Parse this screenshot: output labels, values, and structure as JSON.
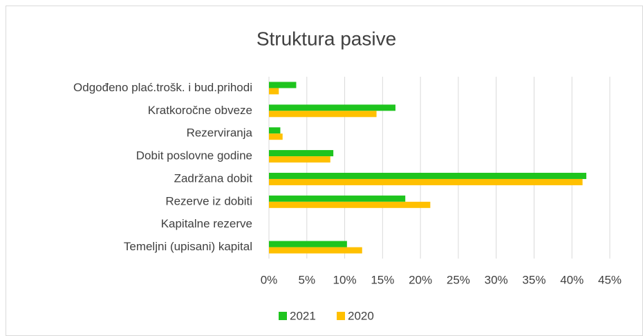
{
  "chart_data": {
    "type": "hbar",
    "title": "Struktura pasive",
    "categories": [
      "Odgođeno plać.trošk. i bud.prihodi",
      "Kratkoročne obveze",
      "Rezerviranja",
      "Dobit poslovne godine",
      "Zadržana dobit",
      "Rezerve iz dobiti",
      "Kapitalne rezerve",
      "Temeljni (upisani) kapital"
    ],
    "series": [
      {
        "name": "2021",
        "color": "#1ec41e",
        "values": [
          3.6,
          16.7,
          1.5,
          8.5,
          41.9,
          18.0,
          0,
          10.3
        ]
      },
      {
        "name": "2020",
        "color": "#ffc000",
        "values": [
          1.3,
          14.2,
          1.8,
          8.1,
          41.4,
          21.3,
          0,
          12.3
        ]
      }
    ],
    "xlim": [
      0,
      45
    ],
    "xticks": [
      {
        "value": 0,
        "label": "0%"
      },
      {
        "value": 5,
        "label": "5%"
      },
      {
        "value": 10,
        "label": "10%"
      },
      {
        "value": 15,
        "label": "15%"
      },
      {
        "value": 20,
        "label": "20%"
      },
      {
        "value": 25,
        "label": "25%"
      },
      {
        "value": 30,
        "label": "30%"
      },
      {
        "value": 35,
        "label": "35%"
      },
      {
        "value": 40,
        "label": "40%"
      },
      {
        "value": 45,
        "label": "45%"
      }
    ],
    "grid": true,
    "legend": "bottom"
  }
}
